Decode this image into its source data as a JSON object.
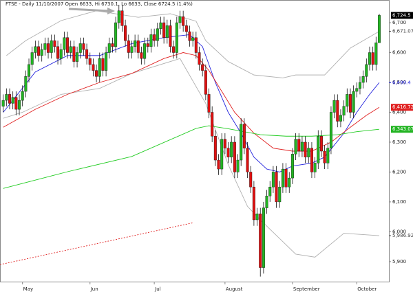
{
  "chart_data": {
    "type": "candlestick",
    "title": "FTSE - Daily 11/10/2007 Open 6633, Hi 6730.1, Lo 6633, Close 6724.5 (1.4%)",
    "xlim": [
      -1,
      120
    ],
    "ylim": [
      5833,
      6776
    ],
    "xticks": [
      {
        "value": 6,
        "label": "May"
      },
      {
        "value": 27,
        "label": "Jun"
      },
      {
        "value": 47,
        "label": "Jul"
      },
      {
        "value": 69,
        "label": "August"
      },
      {
        "value": 90,
        "label": "September"
      },
      {
        "value": 110,
        "label": "October"
      }
    ],
    "yticks": [
      {
        "value": 5900,
        "label": "5,900"
      },
      {
        "value": 6000,
        "label": "6,000"
      },
      {
        "value": 6100,
        "label": "6,100"
      },
      {
        "value": 6200,
        "label": "6,200"
      },
      {
        "value": 6300,
        "label": "6,300"
      },
      {
        "value": 6400,
        "label": "6,400"
      },
      {
        "value": 6500,
        "label": "6,500"
      },
      {
        "value": 6600,
        "label": "6,600"
      },
      {
        "value": 6700,
        "label": "6,700"
      }
    ],
    "up_color": "#22b422",
    "down_color": "#e01010",
    "open": [
      6420,
      6440,
      6460,
      6430,
      6450,
      6410,
      6440,
      6470,
      6520,
      6560,
      6600,
      6620,
      6590,
      6610,
      6630,
      6600,
      6640,
      6620,
      6580,
      6610,
      6650,
      6600,
      6620,
      6570,
      6600,
      6630,
      6610,
      6580,
      6560,
      6540,
      6520,
      6580,
      6540,
      6600,
      6630,
      6620,
      6700,
      6740,
      6690,
      6640,
      6600,
      6620,
      6640,
      6600,
      6580,
      6630,
      6620,
      6660,
      6640,
      6680,
      6700,
      6650,
      6690,
      6620,
      6600,
      6700,
      6720,
      6690,
      6670,
      6640,
      6650,
      6600,
      6560,
      6540,
      6460,
      6400,
      6320,
      6240,
      6210,
      6310,
      6280,
      6250,
      6300,
      6200,
      6240,
      6360,
      6280,
      6200,
      6150,
      6040,
      6060,
      5880,
      6080,
      6120,
      6150,
      6200,
      6100,
      6150,
      6210,
      6150,
      6180,
      6260,
      6310,
      6270,
      6300,
      6250,
      6280,
      6200,
      6230,
      6320,
      6270,
      6230,
      6280,
      6400,
      6440,
      6370,
      6390,
      6420,
      6460,
      6400,
      6470,
      6480,
      6500,
      6520,
      6560,
      6600,
      6560,
      6633
    ],
    "high": [
      6460,
      6480,
      6480,
      6470,
      6470,
      6460,
      6490,
      6540,
      6580,
      6620,
      6640,
      6640,
      6630,
      6650,
      6650,
      6660,
      6660,
      6640,
      6630,
      6670,
      6670,
      6640,
      6640,
      6620,
      6650,
      6650,
      6630,
      6600,
      6580,
      6560,
      6600,
      6600,
      6620,
      6650,
      6650,
      6720,
      6760,
      6760,
      6710,
      6660,
      6640,
      6660,
      6660,
      6620,
      6650,
      6650,
      6680,
      6680,
      6700,
      6720,
      6720,
      6710,
      6710,
      6640,
      6720,
      6740,
      6740,
      6710,
      6690,
      6670,
      6670,
      6620,
      6580,
      6560,
      6480,
      6420,
      6340,
      6260,
      6330,
      6330,
      6300,
      6320,
      6320,
      6260,
      6380,
      6380,
      6300,
      6220,
      6170,
      6080,
      6080,
      6100,
      6140,
      6170,
      6220,
      6220,
      6170,
      6230,
      6230,
      6200,
      6280,
      6330,
      6330,
      6320,
      6320,
      6300,
      6300,
      6250,
      6340,
      6340,
      6290,
      6300,
      6420,
      6460,
      6460,
      6410,
      6440,
      6480,
      6480,
      6490,
      6500,
      6520,
      6540,
      6580,
      6620,
      6620,
      6653,
      6730.1
    ],
    "low": [
      6400,
      6420,
      6410,
      6410,
      6390,
      6390,
      6420,
      6450,
      6500,
      6540,
      6580,
      6570,
      6570,
      6590,
      6580,
      6580,
      6600,
      6560,
      6560,
      6590,
      6580,
      6580,
      6550,
      6550,
      6580,
      6590,
      6560,
      6540,
      6520,
      6500,
      6500,
      6520,
      6520,
      6580,
      6600,
      6600,
      6680,
      6670,
      6620,
      6580,
      6580,
      6600,
      6580,
      6560,
      6560,
      6600,
      6600,
      6620,
      6620,
      6660,
      6630,
      6630,
      6600,
      6580,
      6580,
      6680,
      6670,
      6650,
      6620,
      6620,
      6580,
      6540,
      6520,
      6440,
      6380,
      6300,
      6220,
      6190,
      6190,
      6260,
      6230,
      6230,
      6180,
      6180,
      6220,
      6260,
      6180,
      6130,
      6020,
      6020,
      5850,
      5860,
      6060,
      6100,
      6130,
      6080,
      6080,
      6130,
      6130,
      6130,
      6160,
      6240,
      6250,
      6250,
      6230,
      6230,
      6180,
      6180,
      6210,
      6250,
      6210,
      6210,
      6260,
      6380,
      6350,
      6350,
      6370,
      6400,
      6380,
      6380,
      6450,
      6460,
      6480,
      6500,
      6540,
      6540,
      6540,
      6633
    ],
    "close": [
      6440,
      6460,
      6430,
      6450,
      6410,
      6440,
      6470,
      6520,
      6560,
      6600,
      6620,
      6590,
      6610,
      6630,
      6600,
      6640,
      6620,
      6580,
      6610,
      6650,
      6600,
      6620,
      6570,
      6600,
      6630,
      6610,
      6580,
      6560,
      6540,
      6520,
      6580,
      6540,
      6600,
      6630,
      6620,
      6700,
      6740,
      6690,
      6640,
      6600,
      6620,
      6640,
      6600,
      6580,
      6630,
      6620,
      6660,
      6640,
      6680,
      6700,
      6650,
      6690,
      6620,
      6600,
      6700,
      6720,
      6690,
      6670,
      6640,
      6650,
      6600,
      6560,
      6540,
      6460,
      6400,
      6320,
      6240,
      6210,
      6310,
      6280,
      6250,
      6300,
      6200,
      6240,
      6360,
      6280,
      6200,
      6150,
      6040,
      6060,
      5880,
      6080,
      6120,
      6150,
      6200,
      6100,
      6150,
      6210,
      6150,
      6180,
      6260,
      6310,
      6270,
      6300,
      6250,
      6280,
      6200,
      6230,
      6320,
      6270,
      6230,
      6280,
      6400,
      6440,
      6370,
      6390,
      6420,
      6460,
      6400,
      6470,
      6480,
      6500,
      6520,
      6560,
      6600,
      6560,
      6633,
      6724.5
    ],
    "overlays": [
      {
        "color": "#b0b0b0",
        "dashed": false,
        "x": [
          1,
          7,
          18,
          29,
          42,
          52,
          60,
          63,
          70,
          78,
          87,
          91,
          100,
          108,
          117
        ],
        "values": [
          6590,
          6640,
          6707,
          6740,
          6718,
          6730,
          6705,
          6640,
          6570,
          6525,
          6515,
          6525,
          6525,
          6615,
          6671.07
        ]
      },
      {
        "color": "#b0b0b0",
        "dashed": false,
        "x": [
          0,
          6,
          18,
          30,
          40,
          55,
          63,
          70,
          76,
          80,
          91,
          97,
          106,
          117
        ],
        "values": [
          6380,
          6400,
          6460,
          6480,
          6530,
          6580,
          6430,
          6225,
          6085,
          6040,
          5925,
          5915,
          5995,
          5986.92
        ]
      },
      {
        "color": "#2222dd",
        "dashed": false,
        "x": [
          0,
          10,
          20,
          30,
          40,
          50,
          58,
          62,
          66,
          70,
          74,
          78,
          82,
          86,
          90,
          96,
          100,
          106,
          110,
          114,
          117
        ],
        "values": [
          6400,
          6535,
          6590,
          6590,
          6630,
          6650,
          6660,
          6620,
          6500,
          6400,
          6330,
          6250,
          6210,
          6200,
          6220,
          6230,
          6250,
          6330,
          6400,
          6460,
          6499.4
        ]
      },
      {
        "color": "#e02020",
        "dashed": false,
        "x": [
          0,
          10,
          20,
          30,
          40,
          50,
          56,
          60,
          64,
          68,
          72,
          78,
          84,
          90,
          96,
          102,
          108,
          113,
          117
        ],
        "values": [
          6350,
          6410,
          6460,
          6500,
          6530,
          6580,
          6600,
          6590,
          6540,
          6470,
          6400,
          6330,
          6280,
          6270,
          6270,
          6300,
          6350,
          6390,
          6416.72
        ]
      },
      {
        "color": "#22cc22",
        "dashed": false,
        "x": [
          0,
          20,
          40,
          60,
          64,
          70,
          80,
          88,
          96,
          104,
          110,
          117
        ],
        "values": [
          6145,
          6201,
          6252,
          6346,
          6355,
          6345,
          6325,
          6320,
          6320,
          6325,
          6335,
          6343.07
        ]
      },
      {
        "color": "#e02020",
        "dashed": true,
        "x": [
          -1,
          59
        ],
        "values": [
          5890,
          6030
        ]
      }
    ],
    "price_tags": [
      {
        "value": 6724.5,
        "label": "6,724.5",
        "color": "#000000",
        "boxed": true
      },
      {
        "value": 6671.07,
        "label": "6,671.07",
        "color": "#444444",
        "boxed": false
      },
      {
        "value": 6499.4,
        "label": "6,499.4",
        "color": "#2222dd",
        "boxed": false
      },
      {
        "value": 6416.72,
        "label": "6,416.72",
        "color": "#e02020",
        "boxed": true
      },
      {
        "value": 6343.07,
        "label": "6,343.07",
        "color": "#22b422",
        "boxed": true
      },
      {
        "value": 5986.92,
        "label": "5,986.92",
        "color": "#444444",
        "boxed": false
      }
    ]
  }
}
